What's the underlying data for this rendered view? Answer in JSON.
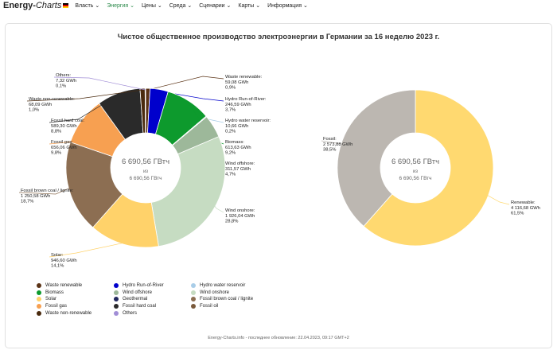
{
  "nav": {
    "brand_main": "Energy-",
    "brand_charts": "Charts",
    "items": [
      {
        "label": "Власть ⌄"
      },
      {
        "label": "Энергия ⌄"
      },
      {
        "label": "Цены ⌄"
      },
      {
        "label": "Среда ⌄"
      },
      {
        "label": "Сценарии ⌄"
      },
      {
        "label": "Карты ⌄"
      },
      {
        "label": "Информация ⌄"
      }
    ]
  },
  "center_text": {
    "total": "6 690,56 ГВтч",
    "of": "из"
  },
  "footer": "Energy-Charts.info - последнее обновление: 22.04.2023, 09:17 GMT+2",
  "legend": [
    {
      "label": "Waste renewable",
      "color": "#5b3316"
    },
    {
      "label": "Hydro Run-of-River",
      "color": "#0000cc"
    },
    {
      "label": "Hydro water reservoir",
      "color": "#a9cde8"
    },
    {
      "label": "Biomass",
      "color": "#0d9a2d"
    },
    {
      "label": "Wind offshore",
      "color": "#9db89a"
    },
    {
      "label": "Wind onshore",
      "color": "#c6dcc2"
    },
    {
      "label": "Solar",
      "color": "#ffd26a"
    },
    {
      "label": "Geothermal",
      "color": "#22295e"
    },
    {
      "label": "Fossil brown coal / lignite",
      "color": "#8c6e52"
    },
    {
      "label": "Fossil gas",
      "color": "#f7a051"
    },
    {
      "label": "Fossil hard coal",
      "color": "#2a2a2a"
    },
    {
      "label": "Fossil oil",
      "color": "#7a5a3c"
    },
    {
      "label": "Waste non-renewable",
      "color": "#4a2a0e"
    },
    {
      "label": "Others",
      "color": "#a18ed6"
    }
  ],
  "chart_data": [
    {
      "type": "pie",
      "title": "Чистое общественное производство электроэнергии в Германии за 16 неделю 2023 г.",
      "center_total": "6 690,56 ГВтч",
      "center_of_total": "6 690,56 ГВтч",
      "slices": [
        {
          "name": "Waste renewable",
          "value_label": "59,08 GWh",
          "percent_label": "0,9%",
          "value": 59.08,
          "color": "#5b3316"
        },
        {
          "name": "Hydro Run-of-River",
          "value_label": "246,59 GWh",
          "percent_label": "3,7%",
          "value": 246.59,
          "color": "#0000cc"
        },
        {
          "name": "Biomass",
          "value_label": "613,63 GWh",
          "percent_label": "9,2%",
          "value": 613.63,
          "color": "#0d9a2d"
        },
        {
          "name": "Hydro water reservoir",
          "value_label": "10,66 GWh",
          "percent_label": "0,2%",
          "value": 10.66,
          "color": "#a9cde8"
        },
        {
          "name": "Wind offshore",
          "value_label": "311,57 GWh",
          "percent_label": "4,7%",
          "value": 311.57,
          "color": "#9db89a"
        },
        {
          "name": "Wind onshore",
          "value_label": "1 926,04 GWh",
          "percent_label": "28,8%",
          "value": 1926.04,
          "color": "#c6dcc2"
        },
        {
          "name": "Solar",
          "value_label": "946,60 GWh",
          "percent_label": "14,1%",
          "value": 946.6,
          "color": "#ffd26a"
        },
        {
          "name": "Fossil brown coal / lignite",
          "value_label": "1 250,58 GWh",
          "percent_label": "18,7%",
          "value": 1250.58,
          "color": "#8c6e52"
        },
        {
          "name": "Fossil gas",
          "value_label": "656,06 GWh",
          "percent_label": "9,8%",
          "value": 656.06,
          "color": "#f7a051"
        },
        {
          "name": "Fossil hard coal",
          "value_label": "589,30 GWh",
          "percent_label": "8,8%",
          "value": 589.3,
          "color": "#2a2a2a"
        },
        {
          "name": "Waste non-renewable",
          "value_label": "68,09 GWh",
          "percent_label": "1,0%",
          "value": 68.09,
          "color": "#4a2a0e"
        },
        {
          "name": "Others",
          "value_label": "7,32 GWh",
          "percent_label": "0,1%",
          "value": 7.32,
          "color": "#a18ed6"
        }
      ]
    },
    {
      "type": "pie",
      "title": "",
      "center_total": "6 690,56 ГВтч",
      "center_of_total": "6 690,56 ГВтч",
      "slices": [
        {
          "name": "Renewable",
          "value_label": "4 116,68 GWh",
          "percent_label": "61,5%",
          "value": 4116.68,
          "color": "#ffd970"
        },
        {
          "name": "Fossil",
          "value_label": "2 573,88 GWh",
          "percent_label": "38,5%",
          "value": 2573.88,
          "color": "#bcb7b1"
        }
      ]
    }
  ]
}
